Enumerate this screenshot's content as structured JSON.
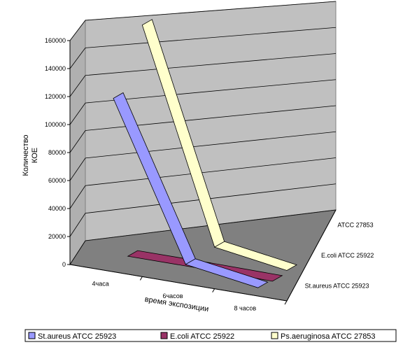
{
  "chart_data": {
    "type": "line",
    "view": "3d",
    "xlabel": "время экспозиции",
    "ylabel_lines": [
      "Количество",
      "КОЕ"
    ],
    "categories": [
      "4часа",
      "6часов",
      "8 часов"
    ],
    "depth_labels": [
      "St.aureus ATCC 25923",
      "E.coli ATCC 25922",
      "ATCC 27853"
    ],
    "ylim": [
      0,
      160000
    ],
    "yticks": [
      "0",
      "20000",
      "40000",
      "60000",
      "80000",
      "100000",
      "120000",
      "140000",
      "160000"
    ],
    "grid": true,
    "legend_position": "bottom",
    "series": [
      {
        "name": "St.aureus ATCC 25923",
        "values": [
          120000,
          10000,
          2000
        ],
        "color": "#9999FF"
      },
      {
        "name": "E.coli ATCC 25922",
        "values": [
          1000,
          1000,
          500
        ],
        "color": "#993366"
      },
      {
        "name": "Ps.aeruginosa ATCC 27853",
        "values": [
          160000,
          10000,
          2000
        ],
        "color": "#FFFFCC"
      }
    ]
  }
}
